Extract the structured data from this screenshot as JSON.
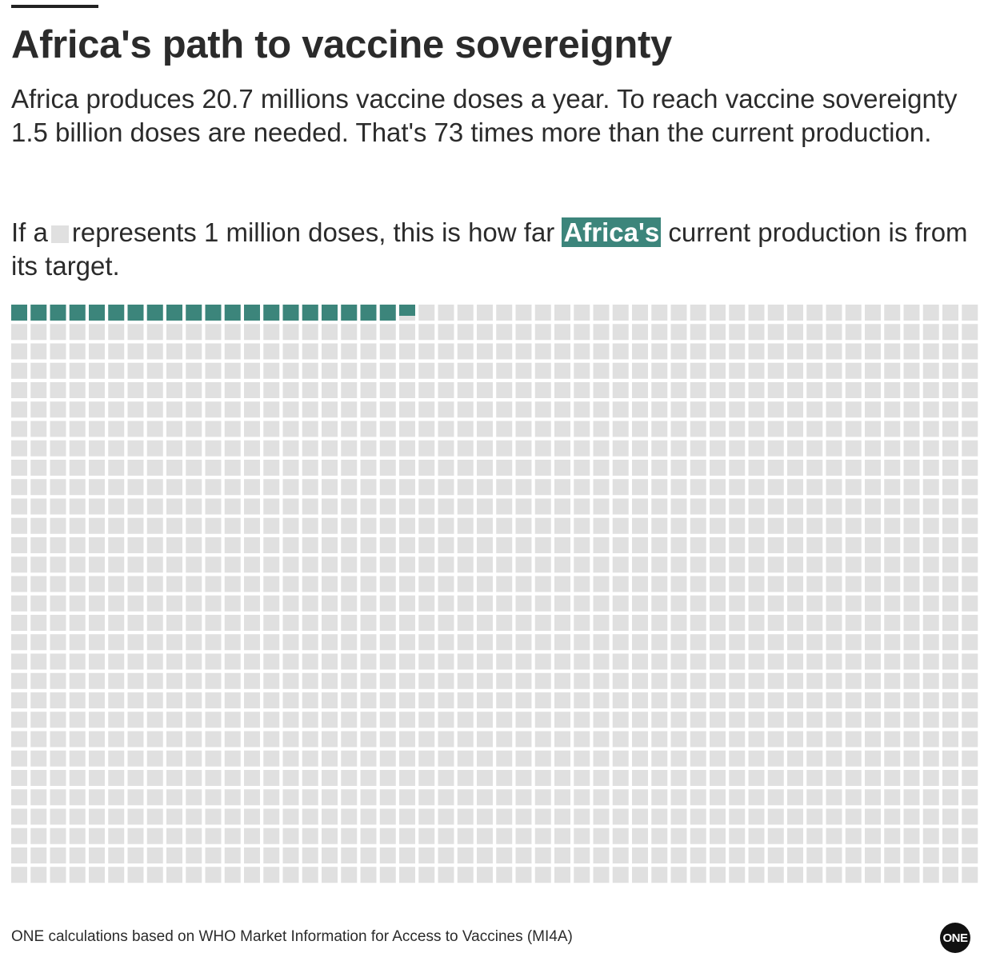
{
  "title": "Africa's path to vaccine sovereignty",
  "subtitle": "Africa produces 20.7 millions vaccine doses a year. To reach vaccine sovereignty 1.5 billion doses are needed. That's 73 times more than the current production.",
  "explainer": {
    "before_square": "If a",
    "after_square": "represents 1 million doses, this is how far",
    "highlight": "Africa's",
    "after_highlight": "current production is from its target."
  },
  "source": "ONE calculations based on WHO Market Information for Access to Vaccines (MI4A)",
  "logo_text": "ONE",
  "chart_data": {
    "type": "waffle",
    "unit": "1 million doses",
    "total": 1500,
    "filled": 20.7,
    "columns": 50,
    "rows": 30,
    "colors": {
      "filled": "#3c857b",
      "empty": "#e0e0e0"
    }
  }
}
